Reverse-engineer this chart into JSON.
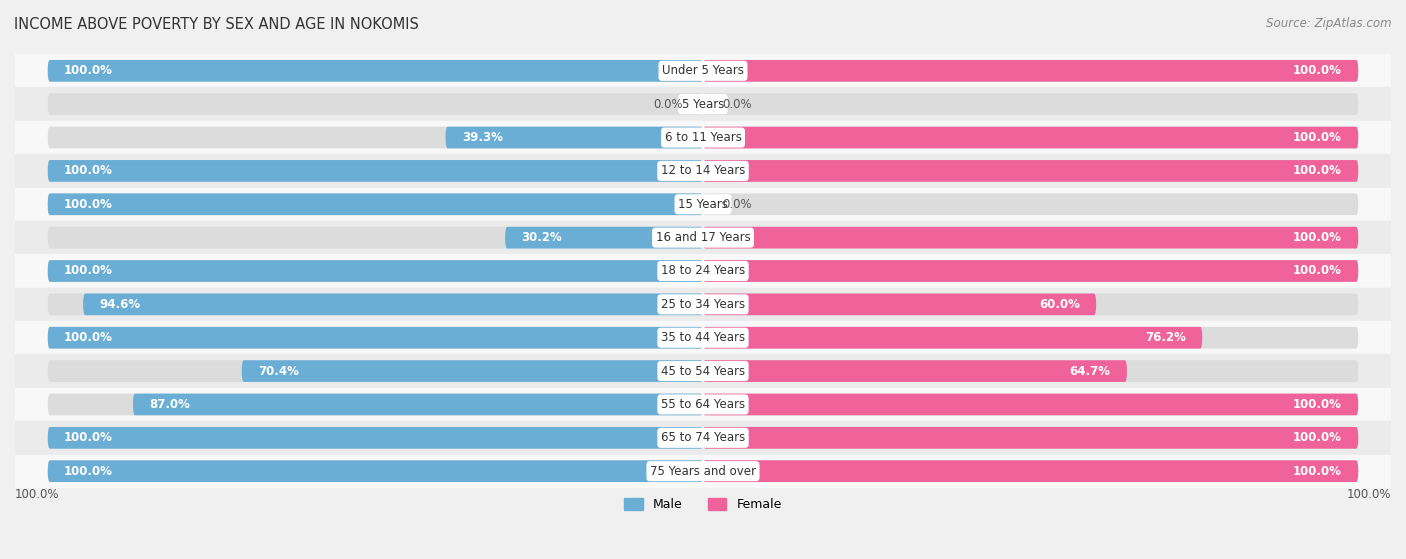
{
  "title": "INCOME ABOVE POVERTY BY SEX AND AGE IN NOKOMIS",
  "source": "Source: ZipAtlas.com",
  "categories": [
    "Under 5 Years",
    "5 Years",
    "6 to 11 Years",
    "12 to 14 Years",
    "15 Years",
    "16 and 17 Years",
    "18 to 24 Years",
    "25 to 34 Years",
    "35 to 44 Years",
    "45 to 54 Years",
    "55 to 64 Years",
    "65 to 74 Years",
    "75 Years and over"
  ],
  "male_values": [
    100.0,
    0.0,
    39.3,
    100.0,
    100.0,
    30.2,
    100.0,
    94.6,
    100.0,
    70.4,
    87.0,
    100.0,
    100.0
  ],
  "female_values": [
    100.0,
    0.0,
    100.0,
    100.0,
    0.0,
    100.0,
    100.0,
    60.0,
    76.2,
    64.7,
    100.0,
    100.0,
    100.0
  ],
  "male_color": "#6aaed6",
  "female_color": "#f0629a",
  "male_label": "Male",
  "female_label": "Female",
  "x_max": 100.0,
  "background_color": "#f0f0f0",
  "bar_background_color": "#dcdcdc",
  "row_bg_even": "#f8f8f8",
  "row_bg_odd": "#ebebeb",
  "title_fontsize": 10.5,
  "source_fontsize": 8.5,
  "label_fontsize": 8.5,
  "bar_height": 0.65
}
